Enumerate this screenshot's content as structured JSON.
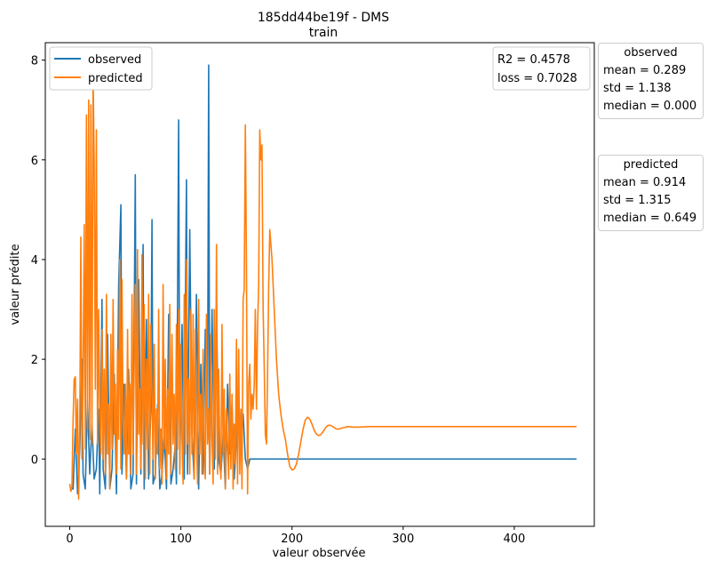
{
  "chart_data": {
    "type": "line",
    "title": "185dd44be19f - DMS",
    "subtitle": "train",
    "xlabel": "valeur observée",
    "ylabel": "valeur prédite",
    "xlim": [
      -22,
      472
    ],
    "ylim": [
      -1.35,
      8.35
    ],
    "xticks": [
      0,
      100,
      200,
      300,
      400
    ],
    "yticks": [
      0,
      2,
      4,
      6,
      8
    ],
    "legend_position": "top-left",
    "metrics": {
      "r2": "R2 = 0.4578",
      "loss": "loss = 0.7028"
    },
    "series": [
      {
        "name": "observed",
        "color": "#1f77b4",
        "points": [
          [
            0,
            -0.6
          ],
          [
            3,
            -0.6
          ],
          [
            5,
            0.6
          ],
          [
            7,
            -0.7
          ],
          [
            9,
            0.2
          ],
          [
            11,
            2.0
          ],
          [
            12,
            -0.3
          ],
          [
            14,
            -0.6
          ],
          [
            16,
            1.2
          ],
          [
            18,
            -0.3
          ],
          [
            20,
            0.7
          ],
          [
            22,
            -0.4
          ],
          [
            24,
            -0.2
          ],
          [
            26,
            1.0
          ],
          [
            27,
            -0.7
          ],
          [
            29,
            3.2
          ],
          [
            30,
            -0.2
          ],
          [
            32,
            -0.6
          ],
          [
            34,
            2.5
          ],
          [
            36,
            -0.6
          ],
          [
            38,
            -0.2
          ],
          [
            40,
            1.7
          ],
          [
            42,
            -0.7
          ],
          [
            44,
            3.5
          ],
          [
            46,
            5.1
          ],
          [
            47,
            -0.3
          ],
          [
            49,
            1.5
          ],
          [
            51,
            -0.4
          ],
          [
            53,
            1.8
          ],
          [
            55,
            -0.6
          ],
          [
            57,
            -0.3
          ],
          [
            59,
            5.7
          ],
          [
            60,
            -0.5
          ],
          [
            62,
            3.6
          ],
          [
            64,
            -0.3
          ],
          [
            66,
            4.3
          ],
          [
            67,
            -0.6
          ],
          [
            69,
            2.8
          ],
          [
            71,
            -0.4
          ],
          [
            73,
            1.0
          ],
          [
            74,
            4.8
          ],
          [
            75,
            -0.5
          ],
          [
            77,
            -0.3
          ],
          [
            79,
            1.1
          ],
          [
            81,
            -0.6
          ],
          [
            83,
            -0.3
          ],
          [
            85,
            0.5
          ],
          [
            87,
            -0.6
          ],
          [
            89,
            2.9
          ],
          [
            91,
            -0.5
          ],
          [
            93,
            -0.2
          ],
          [
            95,
            0.3
          ],
          [
            96,
            -0.5
          ],
          [
            98,
            6.8
          ],
          [
            99,
            -0.2
          ],
          [
            101,
            2.7
          ],
          [
            103,
            -0.4
          ],
          [
            104,
            2.9
          ],
          [
            105,
            5.6
          ],
          [
            106,
            -0.3
          ],
          [
            108,
            4.6
          ],
          [
            110,
            0.5
          ],
          [
            112,
            -0.4
          ],
          [
            114,
            3.3
          ],
          [
            116,
            -0.6
          ],
          [
            118,
            1.9
          ],
          [
            120,
            -0.3
          ],
          [
            122,
            2.6
          ],
          [
            124,
            0.7
          ],
          [
            125,
            7.9
          ],
          [
            126,
            -0.3
          ],
          [
            128,
            3.0
          ],
          [
            130,
            -0.2
          ],
          [
            132,
            3.1
          ],
          [
            134,
            0.0
          ],
          [
            136,
            -0.3
          ],
          [
            138,
            0.5
          ],
          [
            140,
            -0.6
          ],
          [
            142,
            1.5
          ],
          [
            144,
            0.1
          ],
          [
            146,
            1.1
          ],
          [
            148,
            -0.4
          ],
          [
            150,
            0.4
          ],
          [
            152,
            1.2
          ],
          [
            154,
            0.2
          ],
          [
            156,
            0.9
          ],
          [
            158,
            0.0
          ],
          [
            160,
            -0.2
          ],
          [
            162,
            0.0
          ],
          [
            165,
            0.0
          ],
          [
            170,
            0.0
          ],
          [
            180,
            0.0
          ],
          [
            190,
            0.0
          ],
          [
            200,
            0.0
          ],
          [
            205,
            0.0
          ],
          [
            260,
            0.0
          ],
          [
            300,
            0.0
          ],
          [
            350,
            0.0
          ],
          [
            400,
            0.0
          ],
          [
            456,
            0.0
          ]
        ]
      },
      {
        "name": "predicted",
        "color": "#ff7f0e",
        "points": [
          [
            0,
            -0.5
          ],
          [
            1,
            -0.65
          ],
          [
            2,
            -0.55
          ],
          [
            3,
            0.8
          ],
          [
            4,
            1.6
          ],
          [
            5,
            1.65
          ],
          [
            6,
            0.1
          ],
          [
            7,
            1.2
          ],
          [
            8,
            -0.8
          ],
          [
            9,
            0.6
          ],
          [
            10,
            4.45
          ],
          [
            11,
            0.0
          ],
          [
            12,
            1.5
          ],
          [
            13,
            4.7
          ],
          [
            14,
            0.2
          ],
          [
            15,
            6.9
          ],
          [
            16,
            0.6
          ],
          [
            17,
            7.2
          ],
          [
            18,
            0.4
          ],
          [
            19,
            7.1
          ],
          [
            20,
            0.3
          ],
          [
            21,
            7.7
          ],
          [
            22,
            6.0
          ],
          [
            23,
            1.4
          ],
          [
            24,
            6.6
          ],
          [
            25,
            0.3
          ],
          [
            26,
            3.0
          ],
          [
            27,
            1.0
          ],
          [
            28,
            0.1
          ],
          [
            29,
            2.6
          ],
          [
            30,
            0.0
          ],
          [
            31,
            1.8
          ],
          [
            32,
            -0.3
          ],
          [
            33,
            3.3
          ],
          [
            34,
            0.1
          ],
          [
            35,
            1.1
          ],
          [
            36,
            -0.6
          ],
          [
            37,
            2.5
          ],
          [
            38,
            0.2
          ],
          [
            39,
            3.2
          ],
          [
            40,
            0.5
          ],
          [
            41,
            1.5
          ],
          [
            42,
            -0.3
          ],
          [
            43,
            2.2
          ],
          [
            44,
            0.4
          ],
          [
            45,
            4.0
          ],
          [
            46,
            -0.2
          ],
          [
            47,
            3.6
          ],
          [
            48,
            0.6
          ],
          [
            49,
            0.1
          ],
          [
            50,
            1.5
          ],
          [
            51,
            -0.4
          ],
          [
            52,
            2.6
          ],
          [
            53,
            0.1
          ],
          [
            54,
            1.5
          ],
          [
            55,
            -0.3
          ],
          [
            56,
            3.3
          ],
          [
            57,
            0.1
          ],
          [
            58,
            1.9
          ],
          [
            59,
            3.5
          ],
          [
            60,
            -0.3
          ],
          [
            61,
            4.2
          ],
          [
            62,
            0.5
          ],
          [
            63,
            1.4
          ],
          [
            64,
            -0.2
          ],
          [
            65,
            4.1
          ],
          [
            66,
            0.3
          ],
          [
            67,
            3.1
          ],
          [
            68,
            -0.4
          ],
          [
            69,
            2.0
          ],
          [
            70,
            0.2
          ],
          [
            71,
            3.3
          ],
          [
            72,
            -0.3
          ],
          [
            73,
            2.7
          ],
          [
            74,
            1.3
          ],
          [
            75,
            0.0
          ],
          [
            76,
            2.3
          ],
          [
            77,
            -0.4
          ],
          [
            78,
            1.0
          ],
          [
            79,
            0.1
          ],
          [
            80,
            3.0
          ],
          [
            81,
            -0.2
          ],
          [
            82,
            0.6
          ],
          [
            83,
            -0.5
          ],
          [
            84,
            3.5
          ],
          [
            85,
            0.2
          ],
          [
            86,
            2.0
          ],
          [
            87,
            -0.4
          ],
          [
            88,
            1.4
          ],
          [
            89,
            0.1
          ],
          [
            90,
            3.1
          ],
          [
            91,
            -0.3
          ],
          [
            92,
            2.5
          ],
          [
            93,
            0.3
          ],
          [
            94,
            1.3
          ],
          [
            95,
            -0.2
          ],
          [
            96,
            2.7
          ],
          [
            97,
            0.2
          ],
          [
            98,
            3.0
          ],
          [
            99,
            -0.3
          ],
          [
            100,
            2.3
          ],
          [
            101,
            0.4
          ],
          [
            102,
            -0.5
          ],
          [
            103,
            3.3
          ],
          [
            104,
            0.1
          ],
          [
            105,
            4.0
          ],
          [
            106,
            0.3
          ],
          [
            107,
            1.6
          ],
          [
            108,
            -0.3
          ],
          [
            109,
            3.0
          ],
          [
            110,
            0.1
          ],
          [
            111,
            2.9
          ],
          [
            112,
            -0.4
          ],
          [
            113,
            2.6
          ],
          [
            114,
            0.4
          ],
          [
            115,
            -0.5
          ],
          [
            116,
            3.2
          ],
          [
            117,
            0.1
          ],
          [
            118,
            1.3
          ],
          [
            119,
            -0.3
          ],
          [
            120,
            2.2
          ],
          [
            121,
            0.2
          ],
          [
            122,
            -0.4
          ],
          [
            123,
            2.9
          ],
          [
            124,
            0.3
          ],
          [
            125,
            1.0
          ],
          [
            126,
            -0.3
          ],
          [
            127,
            2.5
          ],
          [
            128,
            0.4
          ],
          [
            129,
            -0.5
          ],
          [
            130,
            3.0
          ],
          [
            131,
            0.0
          ],
          [
            132,
            4.3
          ],
          [
            133,
            -0.3
          ],
          [
            134,
            1.8
          ],
          [
            135,
            0.2
          ],
          [
            136,
            -0.4
          ],
          [
            137,
            2.7
          ],
          [
            138,
            0.1
          ],
          [
            139,
            1.4
          ],
          [
            140,
            -0.6
          ],
          [
            141,
            1.0
          ],
          [
            142,
            0.3
          ],
          [
            143,
            -0.4
          ],
          [
            144,
            1.7
          ],
          [
            145,
            -0.2
          ],
          [
            146,
            1.3
          ],
          [
            147,
            -0.6
          ],
          [
            148,
            0.7
          ],
          [
            149,
            -0.1
          ],
          [
            150,
            2.4
          ],
          [
            151,
            -0.5
          ],
          [
            152,
            2.2
          ],
          [
            153,
            -0.3
          ],
          [
            154,
            1.0
          ],
          [
            155,
            -0.6
          ],
          [
            156,
            3.2
          ],
          [
            157,
            3.4
          ],
          [
            158,
            6.7
          ],
          [
            159,
            4.0
          ],
          [
            160,
            -0.7
          ],
          [
            161,
            1.5
          ],
          [
            162,
            1.9
          ],
          [
            163,
            0.8
          ],
          [
            164,
            1.3
          ],
          [
            165,
            1.0
          ],
          [
            166,
            1.5
          ],
          [
            167,
            3.0
          ],
          [
            168,
            1.0
          ],
          [
            169,
            2.6
          ],
          [
            170,
            3.5
          ],
          [
            171,
            6.6
          ],
          [
            172,
            6.0
          ],
          [
            173,
            6.3
          ],
          [
            174,
            3.0
          ],
          [
            175,
            1.9
          ],
          [
            176,
            0.5
          ],
          [
            177,
            0.3
          ],
          [
            178,
            1.7
          ],
          [
            179,
            3.5
          ],
          [
            180,
            4.6
          ],
          [
            182,
            4.0
          ],
          [
            184,
            3.0
          ],
          [
            186,
            2.0
          ],
          [
            188,
            1.3
          ],
          [
            190,
            0.9
          ],
          [
            192,
            0.6
          ],
          [
            194,
            0.4
          ],
          [
            196,
            0.1
          ],
          [
            198,
            -0.15
          ],
          [
            200,
            -0.22
          ],
          [
            202,
            -0.2
          ],
          [
            204,
            -0.1
          ],
          [
            206,
            0.1
          ],
          [
            208,
            0.35
          ],
          [
            210,
            0.6
          ],
          [
            212,
            0.78
          ],
          [
            214,
            0.84
          ],
          [
            216,
            0.8
          ],
          [
            218,
            0.7
          ],
          [
            220,
            0.58
          ],
          [
            222,
            0.5
          ],
          [
            224,
            0.47
          ],
          [
            226,
            0.49
          ],
          [
            228,
            0.55
          ],
          [
            230,
            0.62
          ],
          [
            232,
            0.67
          ],
          [
            234,
            0.68
          ],
          [
            236,
            0.66
          ],
          [
            238,
            0.63
          ],
          [
            240,
            0.6
          ],
          [
            242,
            0.6
          ],
          [
            245,
            0.62
          ],
          [
            250,
            0.65
          ],
          [
            255,
            0.64
          ],
          [
            260,
            0.64
          ],
          [
            270,
            0.65
          ],
          [
            300,
            0.65
          ],
          [
            350,
            0.65
          ],
          [
            400,
            0.65
          ],
          [
            456,
            0.65
          ]
        ]
      }
    ]
  },
  "stats": {
    "observed": {
      "title": "observed",
      "mean": "mean = 0.289",
      "std": "std = 1.138",
      "median": "median = 0.000"
    },
    "predicted": {
      "title": "predicted",
      "mean": "mean = 0.914",
      "std": "std = 1.315",
      "median": "median = 0.649"
    }
  }
}
